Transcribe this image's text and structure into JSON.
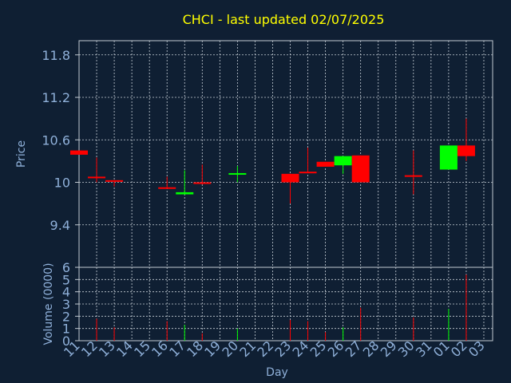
{
  "chart_data": {
    "type": "candlestick",
    "title": "CHCI - last updated 02/07/2025",
    "xlabel": "Day",
    "ylabel_price": "Price",
    "ylabel_volume": "Volume (0000)",
    "price_ticks": [
      "11.8",
      "11.2",
      "10.6",
      "10",
      "9.4"
    ],
    "price_tick_values": [
      11.8,
      11.2,
      10.6,
      10.0,
      9.4
    ],
    "price_ylim": [
      8.8,
      12.0
    ],
    "volume_ticks": [
      "6",
      "5",
      "4",
      "3",
      "2",
      "1",
      "0"
    ],
    "volume_tick_values": [
      6,
      5,
      4,
      3,
      2,
      1,
      0
    ],
    "volume_ylim": [
      0,
      6
    ],
    "x_labels": [
      "11",
      "12",
      "13",
      "14",
      "15",
      "16",
      "17",
      "18",
      "19",
      "20",
      "21",
      "22",
      "23",
      "24",
      "25",
      "26",
      "27",
      "28",
      "29",
      "30",
      "31",
      "01",
      "02",
      "03"
    ],
    "grid": true,
    "colors": {
      "up": "#00ff00",
      "down": "#ff0000",
      "title": "#ffff00",
      "axis_text": "#8fb0d9",
      "background": "#0f1f33"
    },
    "candles": [
      {
        "x": "11",
        "open": 10.45,
        "close": 10.39,
        "high": 10.45,
        "low": 10.39,
        "volume": 0.0
      },
      {
        "x": "12",
        "open": 10.08,
        "close": 10.07,
        "high": 10.35,
        "low": 10.0,
        "volume": 1.8
      },
      {
        "x": "13",
        "open": 10.03,
        "close": 10.02,
        "high": 10.03,
        "low": 9.94,
        "volume": 1.1
      },
      {
        "x": "16",
        "open": 9.93,
        "close": 9.92,
        "high": 10.08,
        "low": 9.92,
        "volume": 1.6
      },
      {
        "x": "17",
        "open": 9.83,
        "close": 9.86,
        "high": 10.17,
        "low": 9.83,
        "volume": 1.3
      },
      {
        "x": "18",
        "open": 10.0,
        "close": 9.98,
        "high": 10.25,
        "low": 9.97,
        "volume": 0.6
      },
      {
        "x": "20",
        "open": 10.12,
        "close": 10.13,
        "high": 10.23,
        "low": 10.0,
        "volume": 1.0
      },
      {
        "x": "23",
        "open": 10.12,
        "close": 10.0,
        "high": 10.12,
        "low": 9.7,
        "volume": 1.7
      },
      {
        "x": "24",
        "open": 10.15,
        "close": 10.14,
        "high": 10.49,
        "low": 10.14,
        "volume": 1.6
      },
      {
        "x": "25",
        "open": 10.29,
        "close": 10.22,
        "high": 10.29,
        "low": 10.22,
        "volume": 0.7
      },
      {
        "x": "26",
        "open": 10.24,
        "close": 10.37,
        "high": 10.37,
        "low": 10.12,
        "volume": 1.1
      },
      {
        "x": "27",
        "open": 10.38,
        "close": 10.0,
        "high": 10.38,
        "low": 10.0,
        "volume": 2.7
      },
      {
        "x": "30",
        "open": 10.1,
        "close": 10.09,
        "high": 10.45,
        "low": 9.83,
        "volume": 1.9
      },
      {
        "x": "01",
        "open": 10.18,
        "close": 10.52,
        "high": 10.52,
        "low": 10.18,
        "volume": 2.6
      },
      {
        "x": "02",
        "open": 10.52,
        "close": 10.37,
        "high": 10.9,
        "low": 10.3,
        "volume": 5.4
      }
    ]
  }
}
